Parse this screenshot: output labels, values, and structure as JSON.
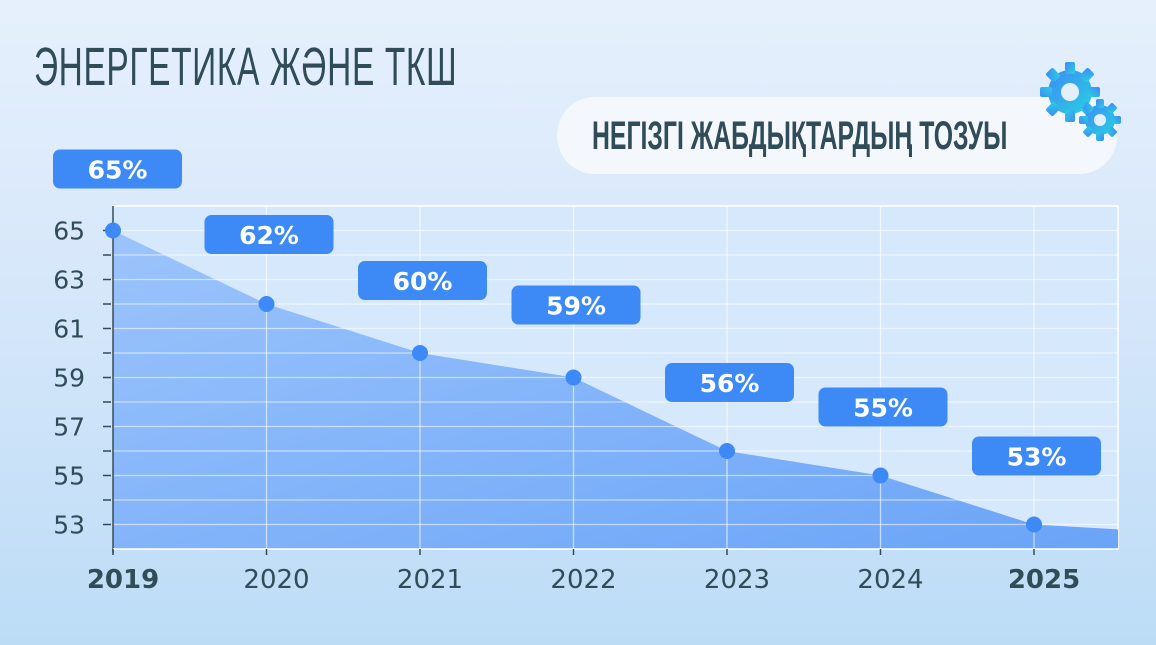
{
  "header": {
    "title": "ЭНЕРГЕТИКА ЖӘНЕ ТКШ",
    "subtitle": "НЕГІЗГІ ЖАБДЫҚТАРДЫҢ ТОЗУЫ",
    "icon": "gears-icon"
  },
  "colors": {
    "accent": "#3d8af7",
    "area": "#7fb0fa",
    "text": "#2f4c58"
  },
  "chart_data": {
    "type": "area",
    "title": "НЕГІЗГІ ЖАБДЫҚТАРДЫҢ ТОЗУЫ",
    "categories": [
      "2019",
      "2020",
      "2021",
      "2022",
      "2023",
      "2024",
      "2025"
    ],
    "bold_categories": [
      "2019",
      "2025"
    ],
    "values": [
      65,
      62,
      60,
      59,
      56,
      55,
      53
    ],
    "data_labels": [
      "65%",
      "62%",
      "60%",
      "59%",
      "56%",
      "55%",
      "53%"
    ],
    "yticks": [
      "53",
      "55",
      "57",
      "59",
      "61",
      "63",
      "65"
    ],
    "ylim": [
      52,
      66
    ],
    "grid": true,
    "xlabel": "",
    "ylabel": ""
  }
}
